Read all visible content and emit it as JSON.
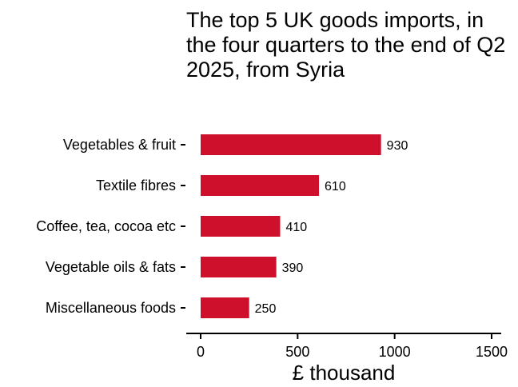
{
  "chart_data": {
    "type": "bar",
    "orientation": "horizontal",
    "title": "The top 5 UK goods imports, in the four quarters to the end of Q2 2025, from Syria",
    "xlabel": "£ thousand",
    "ylabel": "",
    "categories": [
      "Vegetables & fruit",
      "Textile fibres",
      "Coffee, tea, cocoa etc",
      "Vegetable oils & fats",
      "Miscellaneous foods"
    ],
    "values": [
      930,
      610,
      410,
      390,
      250
    ],
    "data_labels": [
      "930",
      "610",
      "410",
      "390",
      "250"
    ],
    "xlim": [
      -70,
      1550
    ],
    "x_ticks": [
      0,
      500,
      1000,
      1500
    ],
    "x_tick_labels": [
      "0",
      "500",
      "1000",
      "1500"
    ],
    "bar_color": "#cf102d",
    "grid": false,
    "legend": "none"
  }
}
